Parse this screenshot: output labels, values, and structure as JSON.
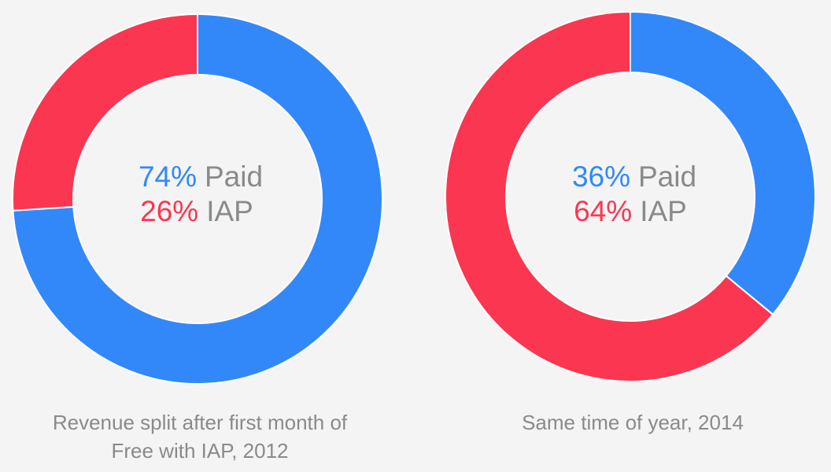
{
  "chart_data": [
    {
      "type": "pie",
      "categories": [
        "Paid",
        "IAP"
      ],
      "values": [
        74,
        26
      ],
      "center": [
        {
          "value": "74%",
          "label": "Paid"
        },
        {
          "value": "26%",
          "label": "IAP"
        }
      ],
      "caption": [
        "Revenue split after first month of",
        "Free with IAP, 2012"
      ]
    },
    {
      "type": "pie",
      "categories": [
        "Paid",
        "IAP"
      ],
      "values": [
        36,
        64
      ],
      "center": [
        {
          "value": "36%",
          "label": "Paid"
        },
        {
          "value": "64%",
          "label": "IAP"
        }
      ],
      "caption": [
        "Same time of year, 2014"
      ]
    }
  ],
  "colors": {
    "paid": "#3388f9",
    "iap": "#fb3651",
    "label_text": "#8a8a8a",
    "background": "#f4f4f4"
  }
}
